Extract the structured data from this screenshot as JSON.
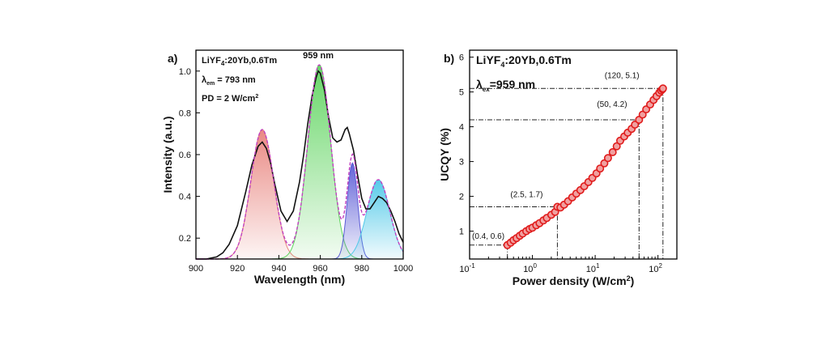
{
  "chart_data": [
    {
      "type": "area",
      "panel_label": "a)",
      "xlabel": "Wavelength (nm)",
      "ylabel": "Intensity (a.u.)",
      "xlim": [
        900,
        1000
      ],
      "ylim": [
        0.1,
        1.1
      ],
      "x_ticks": [
        "900",
        "920",
        "940",
        "960",
        "980",
        "1000"
      ],
      "y_ticks": [
        "0.2",
        "0.4",
        "0.6",
        "0.8",
        "1.0"
      ],
      "notes": [
        "LiYF4:20Yb,0.6Tm",
        "λem = 793 nm",
        "PD = 2 W/cm2"
      ],
      "peak_label": "959 nm",
      "baseline": 0.1,
      "peaks": [
        {
          "center": 932,
          "height": 0.62,
          "width": 5.5,
          "color": "#e8837d"
        },
        {
          "center": 959.5,
          "height": 0.93,
          "width": 5.5,
          "color": "#5fd45f"
        },
        {
          "center": 975.5,
          "height": 0.46,
          "width": 2.5,
          "color": "#5b5bd6"
        },
        {
          "center": 988,
          "height": 0.38,
          "width": 5.5,
          "color": "#4fc8e8"
        }
      ],
      "measured": {
        "x": [
          900,
          905,
          910,
          913,
          916,
          920,
          924,
          927,
          930,
          932,
          934,
          936,
          938,
          941,
          944,
          947,
          950,
          952,
          954,
          956,
          958,
          959,
          960,
          962,
          964,
          966,
          968,
          970,
          972,
          973,
          974,
          976,
          978,
          980,
          982,
          984,
          986,
          988,
          990,
          992,
          994,
          996,
          998,
          1000
        ],
        "y": [
          0.1,
          0.1,
          0.11,
          0.13,
          0.17,
          0.26,
          0.42,
          0.55,
          0.64,
          0.66,
          0.63,
          0.56,
          0.46,
          0.33,
          0.28,
          0.33,
          0.47,
          0.6,
          0.75,
          0.88,
          0.97,
          1.0,
          0.99,
          0.91,
          0.78,
          0.68,
          0.66,
          0.67,
          0.72,
          0.73,
          0.7,
          0.62,
          0.5,
          0.39,
          0.34,
          0.34,
          0.37,
          0.4,
          0.39,
          0.37,
          0.33,
          0.28,
          0.22,
          0.18
        ]
      }
    },
    {
      "type": "scatter",
      "panel_label": "b)",
      "xlabel": "Power density (W/cm2)",
      "ylabel": "UCQY (%)",
      "xscale": "log",
      "xlim": [
        0.1,
        200
      ],
      "ylim": [
        0.2,
        6.2
      ],
      "x_ticks": [
        {
          "value": 0.1,
          "base": "10",
          "exp": "-1"
        },
        {
          "value": 1,
          "base": "10",
          "exp": "0"
        },
        {
          "value": 10,
          "base": "10",
          "exp": "1"
        },
        {
          "value": 100,
          "base": "10",
          "exp": "2"
        }
      ],
      "y_ticks": [
        "1",
        "2",
        "3",
        "4",
        "5",
        "6"
      ],
      "notes": [
        "LiYF4:20Yb,0.6Tm",
        "λex=959 nm"
      ],
      "series_color": "#e01b1b",
      "points_x": [
        0.4,
        0.45,
        0.5,
        0.56,
        0.63,
        0.7,
        0.8,
        0.9,
        1.0,
        1.15,
        1.3,
        1.5,
        1.7,
        2.0,
        2.3,
        2.5,
        2.8,
        3.2,
        3.7,
        4.3,
        5,
        5.8,
        6.7,
        7.8,
        9,
        10.5,
        12,
        14,
        16,
        19,
        22,
        25,
        29,
        33,
        38,
        43,
        50,
        57,
        65,
        75,
        85,
        95,
        105,
        112,
        118,
        120
      ],
      "points_y": [
        0.6,
        0.67,
        0.74,
        0.8,
        0.87,
        0.93,
        1.0,
        1.06,
        1.1,
        1.17,
        1.23,
        1.31,
        1.38,
        1.47,
        1.55,
        1.7,
        1.68,
        1.76,
        1.86,
        1.97,
        2.08,
        2.18,
        2.29,
        2.41,
        2.53,
        2.66,
        2.8,
        2.95,
        3.1,
        3.27,
        3.44,
        3.6,
        3.72,
        3.83,
        3.94,
        4.06,
        4.2,
        4.35,
        4.5,
        4.64,
        4.77,
        4.88,
        4.98,
        5.04,
        5.08,
        5.1
      ],
      "annotations": [
        {
          "x": 0.4,
          "y": 0.6,
          "label": "(0.4, 0.6)"
        },
        {
          "x": 2.5,
          "y": 1.7,
          "label": "(2.5, 1.7)"
        },
        {
          "x": 50,
          "y": 4.2,
          "label": "(50, 4.2)"
        },
        {
          "x": 120,
          "y": 5.1,
          "label": "(120, 5.1)"
        }
      ]
    }
  ]
}
